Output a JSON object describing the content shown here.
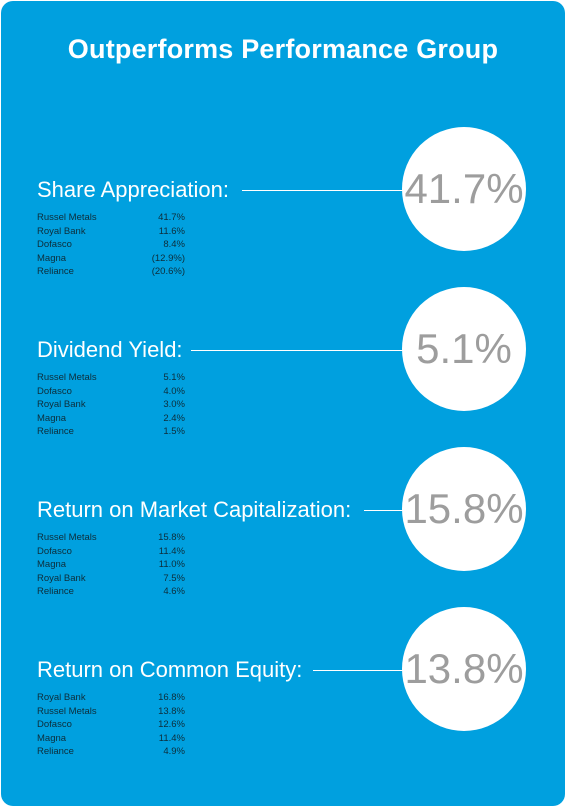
{
  "title": "Outperforms Performance Group",
  "chart_data": [
    {
      "type": "table",
      "title": "Share Appreciation:",
      "highlight": "41.7%",
      "rows": [
        {
          "name": "Russel Metals",
          "value": "41.7%"
        },
        {
          "name": "Royal Bank",
          "value": "11.6%"
        },
        {
          "name": "Dofasco",
          "value": "8.4%"
        },
        {
          "name": "Magna",
          "value": "(12.9%)"
        },
        {
          "name": "Reliance",
          "value": "(20.6%)"
        }
      ]
    },
    {
      "type": "table",
      "title": "Dividend Yield:",
      "highlight": "5.1%",
      "rows": [
        {
          "name": "Russel Metals",
          "value": "5.1%"
        },
        {
          "name": "Dofasco",
          "value": "4.0%"
        },
        {
          "name": "Royal Bank",
          "value": "3.0%"
        },
        {
          "name": "Magna",
          "value": "2.4%"
        },
        {
          "name": "Reliance",
          "value": "1.5%"
        }
      ]
    },
    {
      "type": "table",
      "title": "Return on Market Capitalization:",
      "highlight": "15.8%",
      "rows": [
        {
          "name": "Russel Metals",
          "value": "15.8%"
        },
        {
          "name": "Dofasco",
          "value": "11.4%"
        },
        {
          "name": "Magna",
          "value": "11.0%"
        },
        {
          "name": "Royal Bank",
          "value": "7.5%"
        },
        {
          "name": "Reliance",
          "value": "4.6%"
        }
      ]
    },
    {
      "type": "table",
      "title": "Return on Common Equity:",
      "highlight": "13.8%",
      "rows": [
        {
          "name": "Royal Bank",
          "value": "16.8%"
        },
        {
          "name": "Russel Metals",
          "value": "13.8%"
        },
        {
          "name": "Dofasco",
          "value": "12.6%"
        },
        {
          "name": "Magna",
          "value": "11.4%"
        },
        {
          "name": "Reliance",
          "value": "4.9%"
        }
      ]
    }
  ]
}
